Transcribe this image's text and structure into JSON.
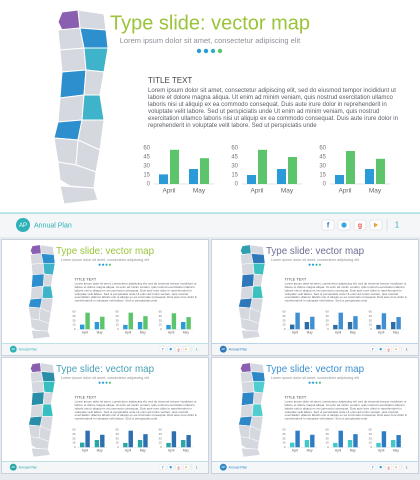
{
  "header": {
    "title": "Type slide: vector map",
    "subtitle": "Lorem ipsum dolor sit amet, consectetur adipiscing elit"
  },
  "body": {
    "title": "TITLE TEXT",
    "paragraph": "Lorem ipsum dolor sit amet, consectetur adipiscing elit, sed do eiusmod tempor incididunt ut labore et dolore magna aliqua. Ut enim ad minim veniam, quis nostrud exercitation ullamco laboris nisi ut aliquip ex ea commodo consequat. Duis aute irure dolor in reprehenderit in voluptate velit labore. Sed ut perspiciatis unde Ut enim ad minim veniam, quis nostrud exercitation ullamco laboris nisi ut aliquip ex ea commodo consequat. Duis aute irure dolor in reprehenderit in voluptate velit labore. Sed ut perspiciatis unde"
  },
  "chart_data": [
    {
      "type": "bar",
      "categories": [
        "April",
        "May"
      ],
      "series": [
        {
          "color": "#2a9ad8",
          "values": [
            16,
            25
          ]
        },
        {
          "color": "#5cc46b",
          "values": [
            57,
            43
          ]
        }
      ],
      "ylim": [
        0,
        60
      ],
      "yticks": [
        0,
        15,
        30,
        45,
        60
      ]
    },
    {
      "type": "bar",
      "categories": [
        "April",
        "May"
      ],
      "series": [
        {
          "color": "#2a9ad8",
          "values": [
            15,
            25
          ]
        },
        {
          "color": "#5cc46b",
          "values": [
            57,
            45
          ]
        }
      ],
      "ylim": [
        0,
        60
      ],
      "yticks": [
        0,
        15,
        30,
        45,
        60
      ]
    },
    {
      "type": "bar",
      "categories": [
        "April",
        "May"
      ],
      "series": [
        {
          "color": "#2a9ad8",
          "values": [
            15,
            25
          ]
        },
        {
          "color": "#5cc46b",
          "values": [
            55,
            42
          ]
        }
      ],
      "ylim": [
        0,
        60
      ],
      "yticks": [
        0,
        15,
        30,
        45,
        60
      ]
    }
  ],
  "footer": {
    "logo": "AP",
    "brand": "Annual Plan",
    "social": [
      "f",
      "g"
    ],
    "page": "1"
  },
  "thumbnail_themes": [
    {
      "title_color": "#9ac43a",
      "map_colors": [
        "#d5d8de",
        "#3fb3c9",
        "#2e8fcf",
        "#8a5fb0"
      ],
      "bar_colors": [
        "#2a9ad8",
        "#5cc46b"
      ],
      "accent": "#2eb1b7"
    },
    {
      "title_color": "#6d6e93",
      "map_colors": [
        "#d5d8de",
        "#3cc0c0",
        "#2e77b8",
        "#2e9fae"
      ],
      "bar_colors": [
        "#2e6da4",
        "#3f8fd2"
      ],
      "accent": "#2e77b8"
    },
    {
      "title_color": "#4a9fb6",
      "map_colors": [
        "#d5d8de",
        "#35bfc0",
        "#2a8ea8",
        "#8a5fb0"
      ],
      "bar_colors": [
        "#2aa6a6",
        "#2e6fb0"
      ],
      "accent": "#2aa6a6"
    },
    {
      "title_color": "#3a8fcf",
      "map_colors": [
        "#d5d8de",
        "#4fcdd0",
        "#2e88c8",
        "#8a5fb0"
      ],
      "bar_colors": [
        "#45c6c8",
        "#2e7dc2"
      ],
      "accent": "#2e88c8"
    }
  ]
}
